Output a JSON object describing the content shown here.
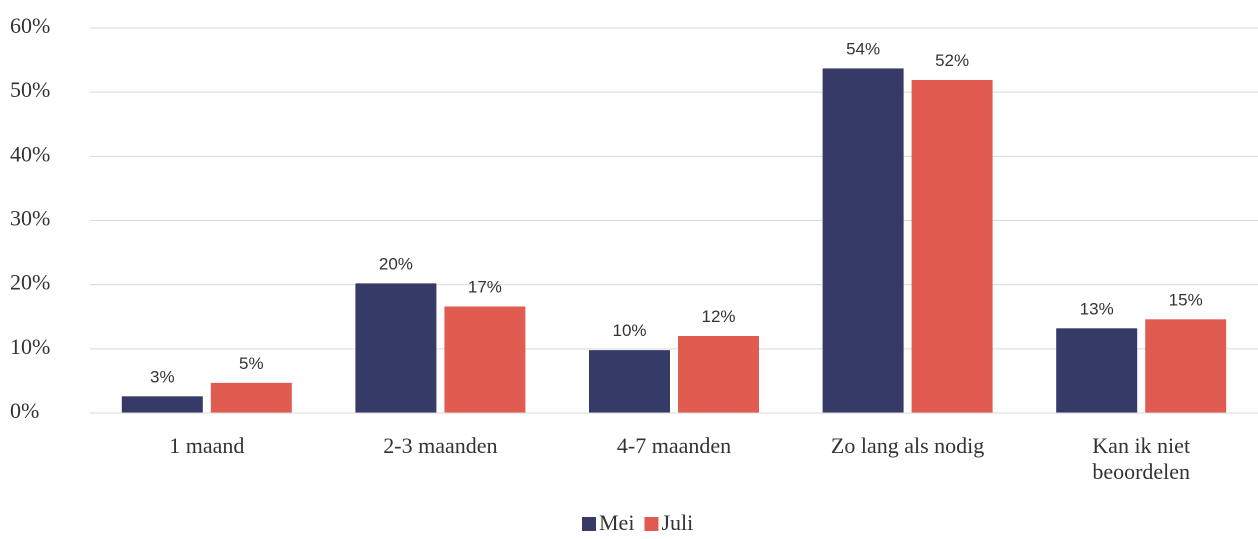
{
  "chart_data": {
    "type": "bar",
    "categories": [
      "1 maand",
      "2-3 maanden",
      "4-7 maanden",
      "Zo lang als nodig",
      "Kan ik niet beoordelen"
    ],
    "series": [
      {
        "name": "Mei",
        "color": "#363a66",
        "values": [
          2.6,
          20.2,
          9.8,
          53.7,
          13.2
        ],
        "value_labels": [
          "3%",
          "20%",
          "10%",
          "54%",
          "13%"
        ]
      },
      {
        "name": "Juli",
        "color": "#e05c50",
        "values": [
          4.7,
          16.6,
          12.0,
          51.9,
          14.6
        ],
        "value_labels": [
          "5%",
          "17%",
          "12%",
          "52%",
          "15%"
        ]
      }
    ],
    "ylim": [
      0,
      60
    ],
    "yticks": [
      {
        "value": 0,
        "label": "0%"
      },
      {
        "value": 10,
        "label": "10%"
      },
      {
        "value": 20,
        "label": "20%"
      },
      {
        "value": 30,
        "label": "30%"
      },
      {
        "value": 40,
        "label": "40%"
      },
      {
        "value": 50,
        "label": "50%"
      },
      {
        "value": 60,
        "label": "60%"
      }
    ],
    "grid": true,
    "legend": "bottom"
  }
}
